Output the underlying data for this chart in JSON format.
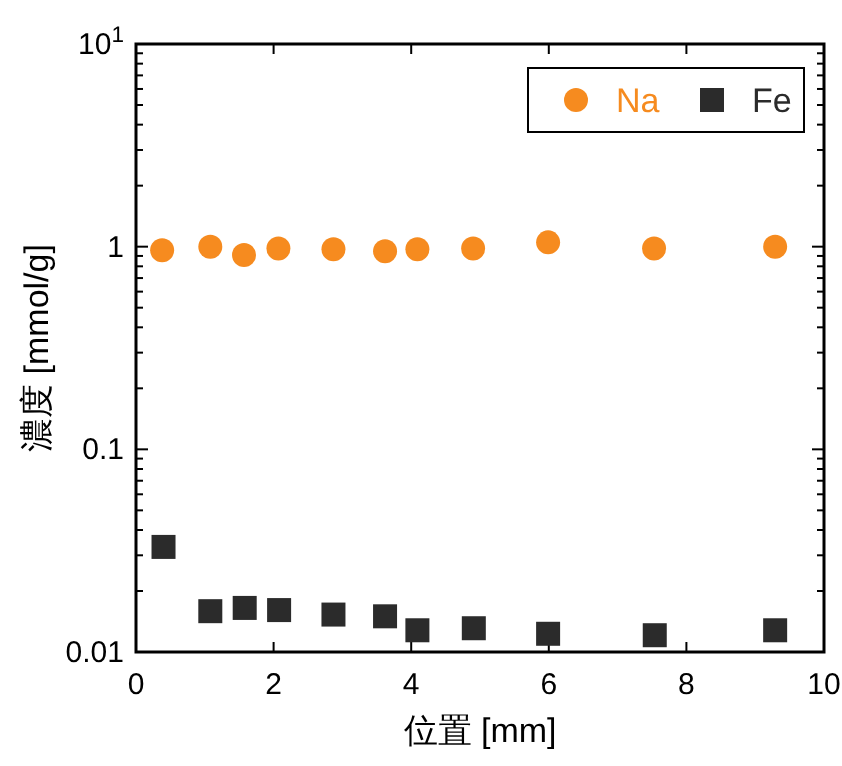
{
  "chart_data": {
    "type": "scatter",
    "xlabel": "位置 [mm]",
    "ylabel": "濃度 [mmol/g]",
    "log": "y",
    "xlim": [
      0,
      10
    ],
    "xticks": [
      0,
      2,
      4,
      6,
      8,
      10
    ],
    "ylim": [
      0.01,
      10
    ],
    "yticks": [
      {
        "value": 0.01,
        "label": "0.01"
      },
      {
        "value": 0.02,
        "label": null
      },
      {
        "value": 0.03,
        "label": null
      },
      {
        "value": 0.04,
        "label": null
      },
      {
        "value": 0.05,
        "label": null
      },
      {
        "value": 0.06,
        "label": null
      },
      {
        "value": 0.07,
        "label": null
      },
      {
        "value": 0.08,
        "label": null
      },
      {
        "value": 0.09,
        "label": null
      },
      {
        "value": 0.1,
        "label": "0.1"
      },
      {
        "value": 0.2,
        "label": null
      },
      {
        "value": 0.3,
        "label": null
      },
      {
        "value": 0.4,
        "label": null
      },
      {
        "value": 0.5,
        "label": null
      },
      {
        "value": 0.6,
        "label": null
      },
      {
        "value": 0.7,
        "label": null
      },
      {
        "value": 0.8,
        "label": null
      },
      {
        "value": 0.9,
        "label": null
      },
      {
        "value": 1,
        "label": "1"
      },
      {
        "value": 2,
        "label": null
      },
      {
        "value": 3,
        "label": null
      },
      {
        "value": 4,
        "label": null
      },
      {
        "value": 5,
        "label": null
      },
      {
        "value": 6,
        "label": null
      },
      {
        "value": 7,
        "label": null
      },
      {
        "value": 8,
        "label": null
      },
      {
        "value": 9,
        "label": null
      },
      {
        "value": 10,
        "label": "10$^{1}$"
      }
    ],
    "grid": false,
    "legend": "top right",
    "series": [
      {
        "name": "Na",
        "color": "#f68b1f",
        "marker": "circle",
        "x": [
          0.38,
          1.08,
          1.57,
          2.07,
          2.87,
          3.62,
          4.09,
          4.9,
          5.99,
          7.53,
          9.29
        ],
        "values": [
          0.96,
          1.0,
          0.91,
          0.98,
          0.97,
          0.95,
          0.97,
          0.98,
          1.05,
          0.98,
          1.0
        ]
      },
      {
        "name": "Fe",
        "color": "#2b2b2b",
        "marker": "square",
        "x": [
          0.4,
          1.08,
          1.58,
          2.08,
          2.87,
          3.62,
          4.09,
          4.91,
          5.99,
          7.54,
          9.29
        ],
        "values": [
          0.033,
          0.0159,
          0.0165,
          0.0161,
          0.0153,
          0.015,
          0.0128,
          0.0131,
          0.0123,
          0.0121,
          0.0128
        ]
      }
    ]
  }
}
